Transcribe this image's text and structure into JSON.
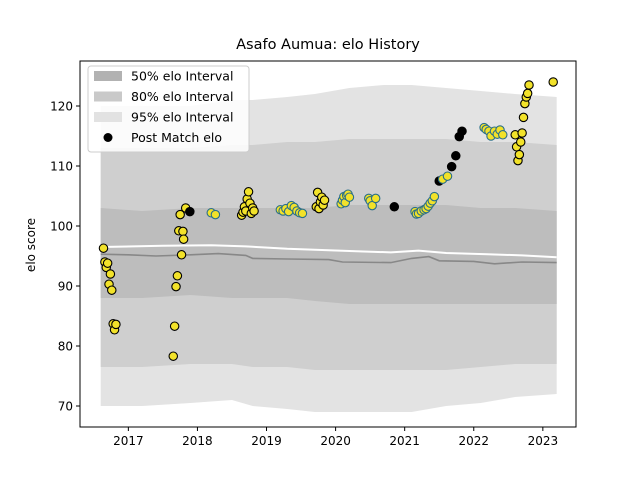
{
  "chart_data": {
    "type": "scatter",
    "title": "Asafo Aumua: elo History",
    "xlabel": "",
    "ylabel": "elo score",
    "xlim": [
      2016.3,
      2023.48
    ],
    "ylim": [
      66.5,
      127.5
    ],
    "xticks": [
      {
        "value": 2017,
        "label": "2017"
      },
      {
        "value": 2018,
        "label": "2018"
      },
      {
        "value": 2019,
        "label": "2019"
      },
      {
        "value": 2020,
        "label": "2020"
      },
      {
        "value": 2021,
        "label": "2021"
      },
      {
        "value": 2022,
        "label": "2022"
      },
      {
        "value": 2023,
        "label": "2023"
      }
    ],
    "yticks": [
      {
        "value": 70,
        "label": "70"
      },
      {
        "value": 80,
        "label": "80"
      },
      {
        "value": 90,
        "label": "90"
      },
      {
        "value": 100,
        "label": "100"
      },
      {
        "value": 110,
        "label": "110"
      },
      {
        "value": 120,
        "label": "120"
      }
    ],
    "grid": false,
    "legend_position": "top-left",
    "legend": [
      {
        "label": "50% elo Interval",
        "kind": "patch",
        "color": "#b2b2b2"
      },
      {
        "label": "80% elo Interval",
        "kind": "patch",
        "color": "#c9c9c9"
      },
      {
        "label": "95% elo Interval",
        "kind": "patch",
        "color": "#e2e2e2"
      },
      {
        "label": "Post Match elo",
        "kind": "marker",
        "color": "#000000"
      }
    ],
    "colors": {
      "band95": "#e3e3e3",
      "band80": "#cfcfcf",
      "band50": "#bdbdbd",
      "mean_line": "#ffffff",
      "median_line": "#888888",
      "marker_fill": "#f2e22a",
      "marker_edge": "#2a6f8a",
      "black_marker": "#000000"
    },
    "bands": [
      {
        "x": 2016.6,
        "lo95": 70,
        "lo80": 76.5,
        "lo50": 88,
        "hi50": 103,
        "hi80": 113,
        "hi95": 120
      },
      {
        "x": 2017.2,
        "lo95": 70,
        "lo80": 76.5,
        "lo50": 88,
        "hi50": 102.5,
        "hi80": 113,
        "hi95": 120
      },
      {
        "x": 2017.9,
        "lo95": 70.5,
        "lo80": 77,
        "lo50": 88.5,
        "hi50": 103,
        "hi80": 113,
        "hi95": 120
      },
      {
        "x": 2018.5,
        "lo95": 71,
        "lo80": 77,
        "lo50": 88,
        "hi50": 103,
        "hi80": 113.5,
        "hi95": 121
      },
      {
        "x": 2018.8,
        "lo95": 70,
        "lo80": 76.5,
        "lo50": 88,
        "hi50": 103,
        "hi80": 113.5,
        "hi95": 121
      },
      {
        "x": 2019.3,
        "lo95": 69.5,
        "lo80": 76.5,
        "lo50": 88,
        "hi50": 103,
        "hi80": 114,
        "hi95": 121.5
      },
      {
        "x": 2019.7,
        "lo95": 69,
        "lo80": 76,
        "lo50": 87.5,
        "hi50": 103,
        "hi80": 114,
        "hi95": 122
      },
      {
        "x": 2020.2,
        "lo95": 69,
        "lo80": 76,
        "lo50": 87,
        "hi50": 103.5,
        "hi80": 114.5,
        "hi95": 123
      },
      {
        "x": 2020.7,
        "lo95": 69,
        "lo80": 76,
        "lo50": 87,
        "hi50": 103.5,
        "hi80": 114.5,
        "hi95": 123.5
      },
      {
        "x": 2021.1,
        "lo95": 69,
        "lo80": 76,
        "lo50": 87,
        "hi50": 103.5,
        "hi80": 114.5,
        "hi95": 123.5
      },
      {
        "x": 2021.6,
        "lo95": 70,
        "lo80": 76,
        "lo50": 87,
        "hi50": 103.5,
        "hi80": 114.5,
        "hi95": 123
      },
      {
        "x": 2022.1,
        "lo95": 70.5,
        "lo80": 76.5,
        "lo50": 87,
        "hi50": 103,
        "hi80": 114,
        "hi95": 122.5
      },
      {
        "x": 2022.6,
        "lo95": 71.5,
        "lo80": 77,
        "lo50": 87,
        "hi50": 103,
        "hi80": 114,
        "hi95": 122
      },
      {
        "x": 2023.2,
        "lo95": 72,
        "lo80": 77,
        "lo50": 87,
        "hi50": 102.5,
        "hi80": 113.5,
        "hi95": 121.5
      }
    ],
    "lines": [
      {
        "name": "mean",
        "color": "#ffffff",
        "width": 2,
        "points": [
          [
            2016.6,
            96.5
          ],
          [
            2017.5,
            96.7
          ],
          [
            2018.2,
            96.8
          ],
          [
            2018.7,
            96.6
          ],
          [
            2019.3,
            96.2
          ],
          [
            2019.8,
            96
          ],
          [
            2020.3,
            95.8
          ],
          [
            2020.8,
            95.6
          ],
          [
            2021.2,
            95.9
          ],
          [
            2021.6,
            95.5
          ],
          [
            2022.2,
            95.3
          ],
          [
            2022.7,
            95.1
          ],
          [
            2023.2,
            94.8
          ]
        ]
      },
      {
        "name": "median",
        "color": "#888888",
        "width": 1.6,
        "points": [
          [
            2016.6,
            95.3
          ],
          [
            2017.0,
            95.2
          ],
          [
            2017.4,
            95.0
          ],
          [
            2017.9,
            95.2
          ],
          [
            2018.3,
            95.4
          ],
          [
            2018.7,
            95.1
          ],
          [
            2018.8,
            94.6
          ],
          [
            2019.3,
            94.5
          ],
          [
            2019.9,
            94.4
          ],
          [
            2020.1,
            94.0
          ],
          [
            2020.8,
            93.9
          ],
          [
            2021.1,
            94.6
          ],
          [
            2021.35,
            94.9
          ],
          [
            2021.5,
            94.2
          ],
          [
            2022.0,
            94.1
          ],
          [
            2022.3,
            93.7
          ],
          [
            2022.7,
            94.0
          ],
          [
            2023.2,
            93.9
          ]
        ]
      }
    ],
    "points": [
      {
        "x": 2016.64,
        "y": 96.3,
        "color": "yellow"
      },
      {
        "x": 2016.66,
        "y": 94.0,
        "color": "yellow"
      },
      {
        "x": 2016.68,
        "y": 93.1,
        "color": "yellow"
      },
      {
        "x": 2016.7,
        "y": 93.8,
        "color": "yellow"
      },
      {
        "x": 2016.72,
        "y": 90.3,
        "color": "yellow"
      },
      {
        "x": 2016.74,
        "y": 92.0,
        "color": "yellow"
      },
      {
        "x": 2016.76,
        "y": 89.3,
        "color": "yellow"
      },
      {
        "x": 2016.78,
        "y": 83.7,
        "color": "yellow"
      },
      {
        "x": 2016.8,
        "y": 82.7,
        "color": "yellow"
      },
      {
        "x": 2016.82,
        "y": 83.6,
        "color": "yellow"
      },
      {
        "x": 2017.65,
        "y": 78.3,
        "color": "yellow"
      },
      {
        "x": 2017.67,
        "y": 83.3,
        "color": "yellow"
      },
      {
        "x": 2017.69,
        "y": 89.9,
        "color": "yellow"
      },
      {
        "x": 2017.71,
        "y": 91.7,
        "color": "yellow"
      },
      {
        "x": 2017.73,
        "y": 99.2,
        "color": "yellow"
      },
      {
        "x": 2017.75,
        "y": 101.9,
        "color": "yellow"
      },
      {
        "x": 2017.77,
        "y": 95.2,
        "color": "yellow"
      },
      {
        "x": 2017.79,
        "y": 99.1,
        "color": "yellow"
      },
      {
        "x": 2017.8,
        "y": 97.8,
        "color": "yellow"
      },
      {
        "x": 2017.83,
        "y": 103.0,
        "color": "yellow"
      },
      {
        "x": 2017.89,
        "y": 102.4,
        "color": "black"
      },
      {
        "x": 2018.2,
        "y": 102.2,
        "color": "teal"
      },
      {
        "x": 2018.26,
        "y": 101.9,
        "color": "teal"
      },
      {
        "x": 2018.64,
        "y": 101.8,
        "color": "yellow"
      },
      {
        "x": 2018.66,
        "y": 102.3,
        "color": "yellow"
      },
      {
        "x": 2018.68,
        "y": 103.2,
        "color": "yellow"
      },
      {
        "x": 2018.7,
        "y": 102.5,
        "color": "yellow"
      },
      {
        "x": 2018.72,
        "y": 104.5,
        "color": "yellow"
      },
      {
        "x": 2018.74,
        "y": 105.7,
        "color": "yellow"
      },
      {
        "x": 2018.76,
        "y": 103.8,
        "color": "yellow"
      },
      {
        "x": 2018.78,
        "y": 102.1,
        "color": "yellow"
      },
      {
        "x": 2018.8,
        "y": 103.0,
        "color": "yellow"
      },
      {
        "x": 2018.82,
        "y": 102.5,
        "color": "yellow"
      },
      {
        "x": 2019.2,
        "y": 102.7,
        "color": "teal"
      },
      {
        "x": 2019.24,
        "y": 102.5,
        "color": "teal"
      },
      {
        "x": 2019.28,
        "y": 102.9,
        "color": "teal"
      },
      {
        "x": 2019.32,
        "y": 102.4,
        "color": "teal"
      },
      {
        "x": 2019.36,
        "y": 103.4,
        "color": "teal"
      },
      {
        "x": 2019.4,
        "y": 103.1,
        "color": "teal"
      },
      {
        "x": 2019.44,
        "y": 102.5,
        "color": "teal"
      },
      {
        "x": 2019.48,
        "y": 102.2,
        "color": "teal"
      },
      {
        "x": 2019.52,
        "y": 102.1,
        "color": "teal"
      },
      {
        "x": 2019.72,
        "y": 103.2,
        "color": "yellow"
      },
      {
        "x": 2019.74,
        "y": 105.6,
        "color": "yellow"
      },
      {
        "x": 2019.76,
        "y": 102.9,
        "color": "yellow"
      },
      {
        "x": 2019.78,
        "y": 104.0,
        "color": "yellow"
      },
      {
        "x": 2019.8,
        "y": 104.8,
        "color": "yellow"
      },
      {
        "x": 2019.82,
        "y": 103.5,
        "color": "yellow"
      },
      {
        "x": 2019.84,
        "y": 104.3,
        "color": "yellow"
      },
      {
        "x": 2020.08,
        "y": 103.7,
        "color": "teal"
      },
      {
        "x": 2020.1,
        "y": 104.3,
        "color": "teal"
      },
      {
        "x": 2020.12,
        "y": 104.9,
        "color": "teal"
      },
      {
        "x": 2020.14,
        "y": 103.9,
        "color": "teal"
      },
      {
        "x": 2020.16,
        "y": 105.1,
        "color": "teal"
      },
      {
        "x": 2020.18,
        "y": 105.3,
        "color": "teal"
      },
      {
        "x": 2020.2,
        "y": 104.8,
        "color": "teal"
      },
      {
        "x": 2020.48,
        "y": 104.6,
        "color": "teal"
      },
      {
        "x": 2020.5,
        "y": 104.2,
        "color": "teal"
      },
      {
        "x": 2020.53,
        "y": 103.4,
        "color": "teal"
      },
      {
        "x": 2020.58,
        "y": 104.6,
        "color": "teal"
      },
      {
        "x": 2020.85,
        "y": 103.2,
        "color": "black"
      },
      {
        "x": 2021.15,
        "y": 102.4,
        "color": "teal"
      },
      {
        "x": 2021.17,
        "y": 102.0,
        "color": "teal"
      },
      {
        "x": 2021.2,
        "y": 102.1,
        "color": "teal"
      },
      {
        "x": 2021.24,
        "y": 102.5,
        "color": "teal"
      },
      {
        "x": 2021.28,
        "y": 102.7,
        "color": "teal"
      },
      {
        "x": 2021.31,
        "y": 102.9,
        "color": "teal"
      },
      {
        "x": 2021.34,
        "y": 103.3,
        "color": "teal"
      },
      {
        "x": 2021.37,
        "y": 103.8,
        "color": "teal"
      },
      {
        "x": 2021.4,
        "y": 104.2,
        "color": "teal"
      },
      {
        "x": 2021.43,
        "y": 104.9,
        "color": "teal"
      },
      {
        "x": 2021.5,
        "y": 107.5,
        "color": "black"
      },
      {
        "x": 2021.55,
        "y": 107.8,
        "color": "teal"
      },
      {
        "x": 2021.62,
        "y": 108.3,
        "color": "teal"
      },
      {
        "x": 2021.68,
        "y": 109.9,
        "color": "black"
      },
      {
        "x": 2021.74,
        "y": 111.7,
        "color": "black"
      },
      {
        "x": 2021.79,
        "y": 114.9,
        "color": "black"
      },
      {
        "x": 2021.83,
        "y": 115.8,
        "color": "black"
      },
      {
        "x": 2022.15,
        "y": 116.4,
        "color": "teal"
      },
      {
        "x": 2022.18,
        "y": 116.1,
        "color": "teal"
      },
      {
        "x": 2022.22,
        "y": 115.8,
        "color": "teal"
      },
      {
        "x": 2022.25,
        "y": 115.0,
        "color": "teal"
      },
      {
        "x": 2022.3,
        "y": 115.8,
        "color": "teal"
      },
      {
        "x": 2022.34,
        "y": 115.3,
        "color": "teal"
      },
      {
        "x": 2022.38,
        "y": 116.0,
        "color": "teal"
      },
      {
        "x": 2022.42,
        "y": 115.2,
        "color": "teal"
      },
      {
        "x": 2022.6,
        "y": 115.2,
        "color": "yellow"
      },
      {
        "x": 2022.62,
        "y": 113.2,
        "color": "yellow"
      },
      {
        "x": 2022.64,
        "y": 110.9,
        "color": "yellow"
      },
      {
        "x": 2022.66,
        "y": 111.9,
        "color": "yellow"
      },
      {
        "x": 2022.68,
        "y": 114.0,
        "color": "yellow"
      },
      {
        "x": 2022.7,
        "y": 115.5,
        "color": "yellow"
      },
      {
        "x": 2022.72,
        "y": 118.1,
        "color": "yellow"
      },
      {
        "x": 2022.74,
        "y": 120.4,
        "color": "yellow"
      },
      {
        "x": 2022.76,
        "y": 121.5,
        "color": "yellow"
      },
      {
        "x": 2022.78,
        "y": 122.1,
        "color": "yellow"
      },
      {
        "x": 2022.8,
        "y": 123.5,
        "color": "yellow"
      },
      {
        "x": 2023.15,
        "y": 124.0,
        "color": "yellow"
      }
    ]
  }
}
